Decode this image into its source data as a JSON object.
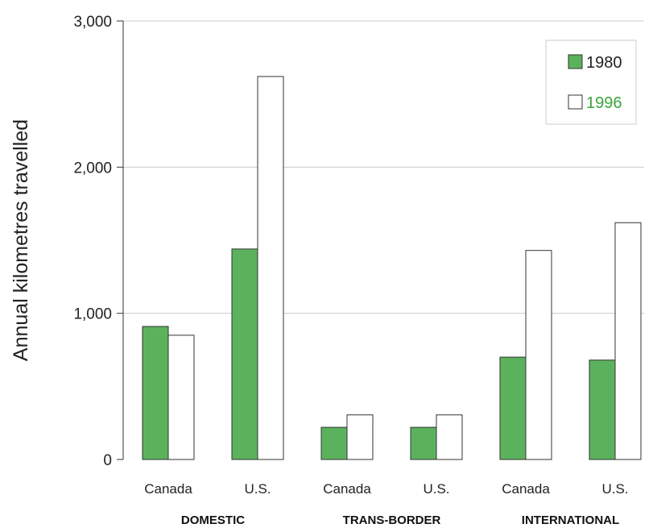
{
  "chart_data": {
    "type": "bar",
    "ylabel": "Annual kilometres travelled",
    "ylim": [
      0,
      3000
    ],
    "yticks": [
      0,
      1000,
      2000,
      3000
    ],
    "ytick_labels": [
      "0",
      "1,000",
      "2,000",
      "3,000"
    ],
    "grid": true,
    "legend_position": "top-right",
    "groups": [
      {
        "label": "DOMESTIC",
        "categories": [
          "Canada",
          "U.S."
        ]
      },
      {
        "label": "TRANS-BORDER",
        "categories": [
          "Canada",
          "U.S."
        ]
      },
      {
        "label": "INTERNATIONAL",
        "categories": [
          "Canada",
          "U.S."
        ]
      }
    ],
    "series": [
      {
        "name": "1980",
        "color": "#5cb25c",
        "legend_text_color": "#222222",
        "values": [
          910,
          1440,
          220,
          220,
          700,
          680
        ]
      },
      {
        "name": "1996",
        "color": "#ffffff",
        "legend_text_color": "#3aa53a",
        "values": [
          850,
          2620,
          305,
          305,
          1430,
          1620
        ]
      }
    ]
  }
}
